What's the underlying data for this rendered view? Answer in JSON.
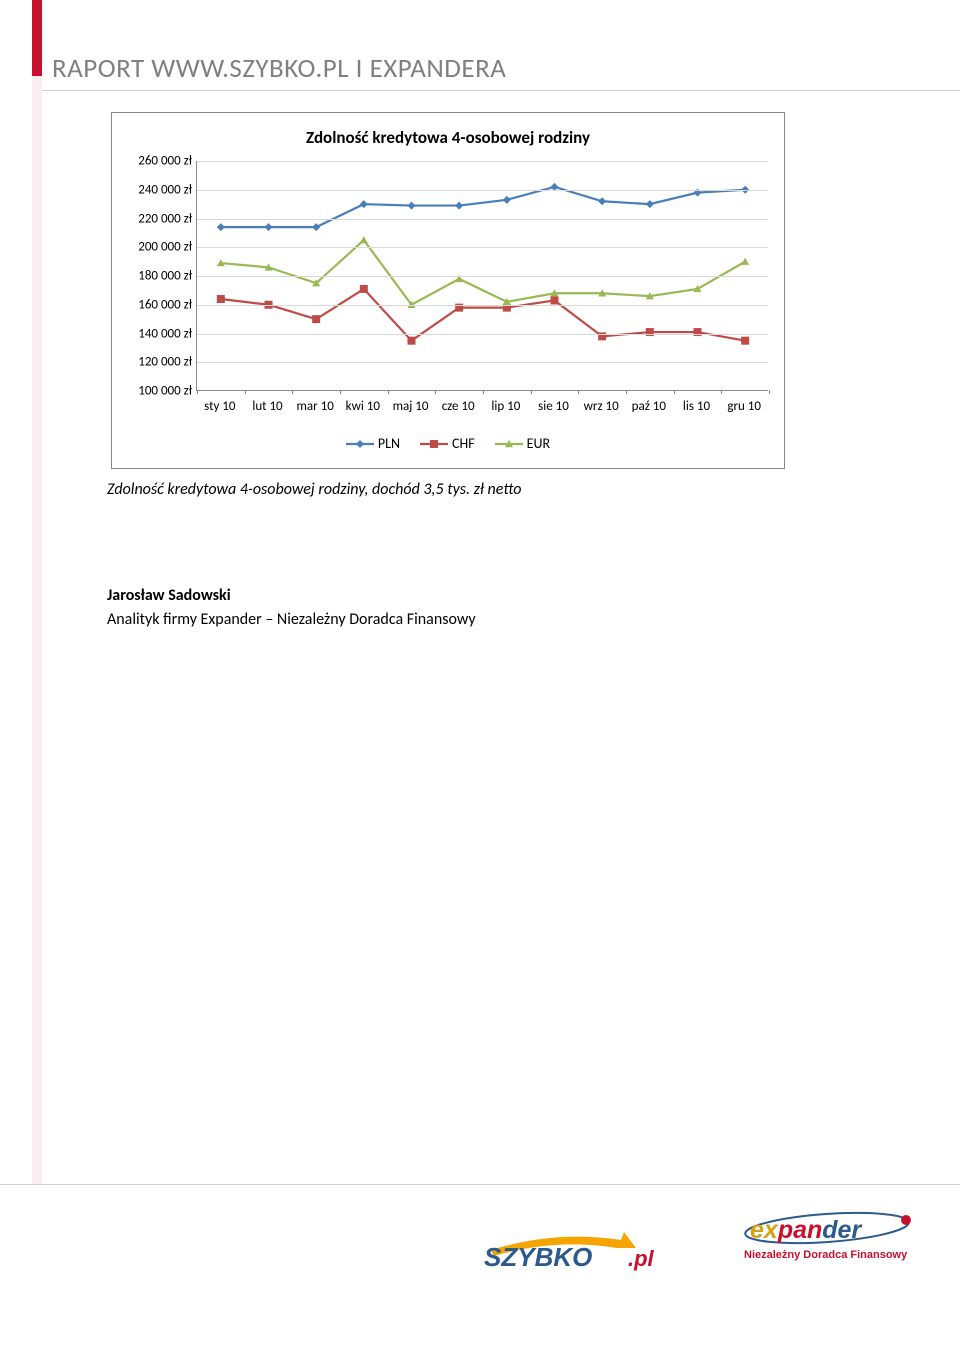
{
  "header": {
    "title": "RAPORT WWW.SZYBKO.PL I EXPANDERA"
  },
  "chart": {
    "type": "line",
    "title": "Zdolność kredytowa 4-osobowej rodziny",
    "title_fontsize": 17,
    "background_color": "#ffffff",
    "border_color": "#888888",
    "grid_color": "#d9d9d9",
    "text_color": "#000000",
    "axis_fontsize": 13,
    "categories": [
      "sty 10",
      "lut 10",
      "mar 10",
      "kwi 10",
      "maj 10",
      "cze 10",
      "lip 10",
      "sie 10",
      "wrz 10",
      "paź 10",
      "lis 10",
      "gru 10"
    ],
    "ymin": 100000,
    "ymax": 260000,
    "ytick_step": 20000,
    "y_suffix": " zł",
    "y_labels": [
      "100 000 zł",
      "120 000 zł",
      "140 000 zł",
      "160 000 zł",
      "180 000 zł",
      "200 000 zł",
      "220 000 zł",
      "240 000 zł",
      "260 000 zł"
    ],
    "series": [
      {
        "name": "PLN",
        "color": "#4a7ebb",
        "marker": "diamond",
        "line_width": 2.2,
        "marker_size": 8,
        "values": [
          214000,
          214000,
          214000,
          230000,
          229000,
          229000,
          233000,
          242000,
          232000,
          230000,
          238000,
          240000
        ]
      },
      {
        "name": "CHF",
        "color": "#be4b48",
        "marker": "square",
        "line_width": 2.2,
        "marker_size": 8,
        "values": [
          164000,
          160000,
          150000,
          171000,
          135000,
          158000,
          158000,
          163000,
          138000,
          141000,
          141000,
          135000
        ]
      },
      {
        "name": "EUR",
        "color": "#98b954",
        "marker": "triangle",
        "line_width": 2.2,
        "marker_size": 8,
        "values": [
          189000,
          186000,
          175000,
          205000,
          160000,
          178000,
          162000,
          168000,
          168000,
          166000,
          171000,
          190000
        ]
      }
    ]
  },
  "caption": "Zdolność kredytowa 4-osobowej rodziny, dochód 3,5 tys. zł netto",
  "author": {
    "name": "Jarosław Sadowski",
    "role": "Analityk firmy Expander – Niezależny Doradca Finansowy"
  },
  "logos": {
    "szybko": {
      "text_main": "SZYBKO",
      "text_suffix": ".pl",
      "main_color": "#2b5a8c",
      "accent_color": "#f6a500",
      "suffix_color": "#c8102e"
    },
    "expander": {
      "text": "expander",
      "tagline": "Niezależny Doradca Finansowy",
      "colors": [
        "#d4a017",
        "#c8102e",
        "#2b5a8c"
      ],
      "tagline_color": "#c8102e"
    }
  },
  "accent_bar_color": "#c8102e"
}
